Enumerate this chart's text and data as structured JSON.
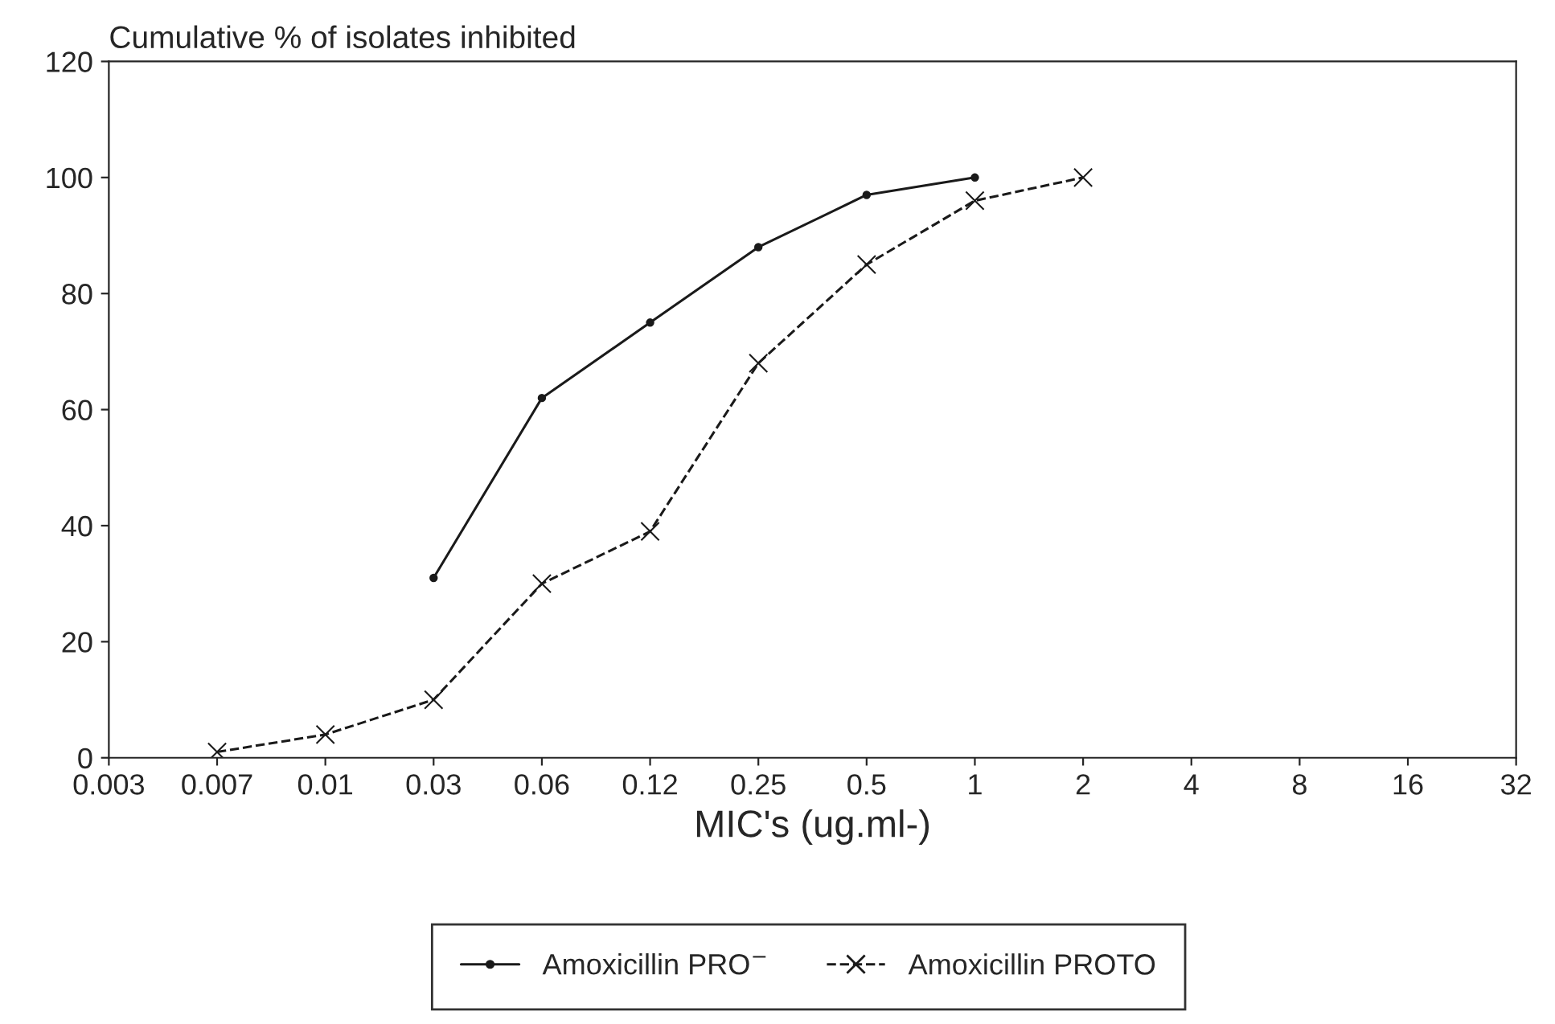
{
  "chart_data": {
    "type": "line",
    "ylabel": "Cumulative % of isolates inhibited",
    "xlabel": "MIC's (ug.ml-)",
    "categories": [
      "0.003",
      "0.007",
      "0.01",
      "0.03",
      "0.06",
      "0.12",
      "0.25",
      "0.5",
      "1",
      "2",
      "4",
      "8",
      "16",
      "32"
    ],
    "series": [
      {
        "name": "Amoxicillin PRO$^{−}$",
        "color": "#1a1a1a",
        "marker": "circle",
        "line_style": "solid",
        "values": [
          null,
          null,
          null,
          31,
          62,
          75,
          88,
          97,
          100,
          null,
          null,
          null,
          null,
          null
        ]
      },
      {
        "name": "Amoxicillin PROTO",
        "color": "#1a1a1a",
        "marker": "cross",
        "line_style": "dashed",
        "values": [
          null,
          1,
          4,
          10,
          30,
          39,
          68,
          85,
          96,
          100,
          null,
          null,
          null,
          null
        ]
      }
    ],
    "ylim": [
      0,
      120
    ],
    "yticks": [
      0,
      20,
      40,
      60,
      80,
      100,
      120
    ],
    "grid": false,
    "legend": "bottom"
  }
}
